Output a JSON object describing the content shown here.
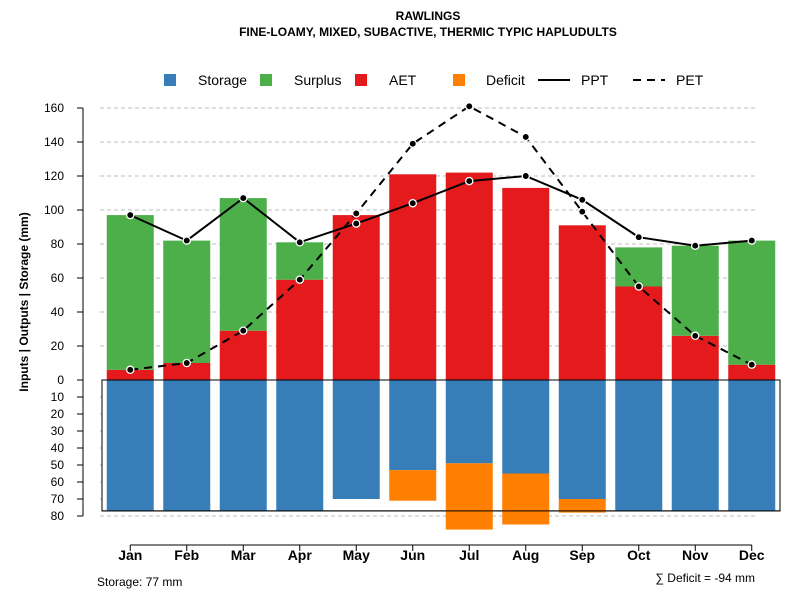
{
  "chart_data": {
    "type": "bar",
    "title": "RAWLINGS",
    "subtitle": "FINE-LOAMY, MIXED, SUBACTIVE, THERMIC TYPIC HAPLUDULTS",
    "ylabel": "Inputs | Outputs | Storage    (mm)",
    "categories": [
      "Jan",
      "Feb",
      "Mar",
      "Apr",
      "May",
      "Jun",
      "Jul",
      "Aug",
      "Sep",
      "Oct",
      "Nov",
      "Dec"
    ],
    "ylim_top": [
      0,
      170
    ],
    "ylim_bottom": [
      0,
      80
    ],
    "yticks_top": [
      0,
      20,
      40,
      60,
      80,
      100,
      120,
      140,
      160
    ],
    "yticks_bottom": [
      10,
      20,
      30,
      40,
      50,
      60,
      70,
      80
    ],
    "storage_capacity": 77,
    "series": [
      {
        "name": "AET",
        "values": [
          6,
          10,
          29,
          59,
          97,
          121,
          122,
          113,
          91,
          55,
          26,
          9
        ]
      },
      {
        "name": "Surplus",
        "values": [
          91,
          72,
          78,
          22,
          0,
          0,
          0,
          0,
          0,
          23,
          53,
          73
        ]
      },
      {
        "name": "Storage",
        "values": [
          77,
          77,
          77,
          77,
          70,
          53,
          49,
          55,
          70,
          77,
          77,
          77
        ]
      },
      {
        "name": "Deficit",
        "values": [
          0,
          0,
          0,
          0,
          0,
          18,
          39,
          30,
          8,
          0,
          0,
          0
        ]
      },
      {
        "name": "PPT",
        "values": [
          97,
          82,
          107,
          81,
          92,
          104,
          117,
          120,
          106,
          84,
          79,
          82
        ]
      },
      {
        "name": "PET",
        "values": [
          6,
          10,
          29,
          59,
          98,
          139,
          161,
          143,
          99,
          55,
          26,
          9
        ]
      }
    ],
    "legend": [
      {
        "label": "Storage",
        "kind": "box",
        "color": "#377EB8"
      },
      {
        "label": "Surplus",
        "kind": "box",
        "color": "#4DAF4A"
      },
      {
        "label": "AET",
        "kind": "box",
        "color": "#E41A1C"
      },
      {
        "label": "Deficit",
        "kind": "box",
        "color": "#FF7F00"
      },
      {
        "label": "PPT",
        "kind": "solid",
        "color": "#000000"
      },
      {
        "label": "PET",
        "kind": "dashed",
        "color": "#000000"
      }
    ],
    "legend_position": "top",
    "grid": true,
    "footer_left": "Storage: 77 mm",
    "footer_right": "∑ Deficit = -94 mm"
  }
}
